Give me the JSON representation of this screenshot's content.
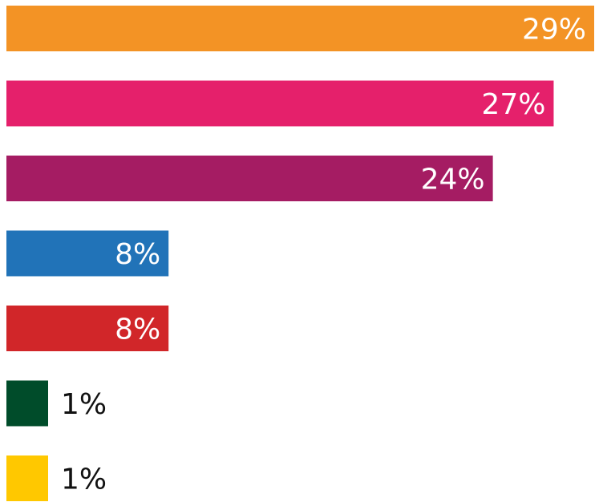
{
  "chart_data": {
    "type": "bar",
    "orientation": "horizontal",
    "values": [
      29,
      27,
      24,
      8,
      8,
      1,
      1
    ],
    "labels": [
      "29%",
      "27%",
      "24%",
      "8%",
      "8%",
      "1%",
      "1%"
    ],
    "colors": [
      "#F39325",
      "#E5206B",
      "#A51C63",
      "#2173B8",
      "#D12629",
      "#004C2A",
      "#FFC800"
    ],
    "xlim": [
      0,
      29
    ],
    "legend": "none",
    "grid": false
  }
}
